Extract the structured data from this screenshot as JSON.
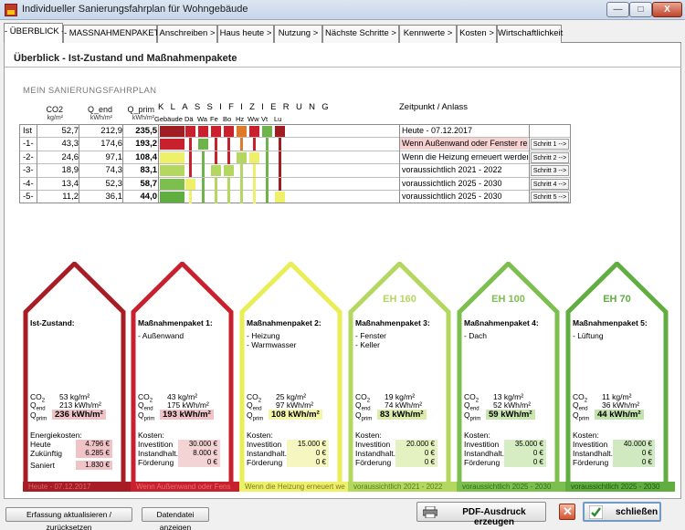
{
  "window": {
    "title": "Individueller Sanierungsfahrplan für Wohngebäude",
    "min": "—",
    "max": "□",
    "close": "X"
  },
  "tabs": [
    "- ÜBERBLICK -",
    "- MASSNAHMENPAKETE -",
    "Anschreiben >",
    "Haus heute >",
    "Nutzung >",
    "Nächste Schritte >",
    "Kennwerte >",
    "Kosten >",
    "Wirtschaftlichkeit"
  ],
  "header": "Überblick - Ist-Zustand und Maßnahmenpakete",
  "section_title": "MEIN SANIERUNGSFAHRPLAN",
  "table": {
    "col_co2": "CO2",
    "col_co2_unit": "kg/m²",
    "col_qend": "Q_end",
    "col_qend_unit": "kWh/m²",
    "col_qprim": "Q_prim",
    "col_qprim_unit": "kWh/m²",
    "klassifizierung": "KLASSIFIZIERUNG",
    "klass_cols": [
      "Gebäude",
      "Dä",
      "Wa",
      "Fe",
      "Bo",
      "Hz",
      "Ww",
      "Vt",
      "Lu"
    ],
    "zeitpunkt": "Zeitpunkt / Anlass",
    "rows": [
      {
        "label": "Ist",
        "co2": "52,7",
        "qend": "212,9",
        "qprim": "235,5",
        "anlass": "Heute - 07.12.2017",
        "schritt": ""
      },
      {
        "label": "-1-",
        "co2": "43,3",
        "qend": "174,6",
        "qprim": "193,2",
        "anlass": "Wenn Außenwand oder Fenster rep",
        "schritt": "Schritt 1 -->"
      },
      {
        "label": "-2-",
        "co2": "24,6",
        "qend": "97,1",
        "qprim": "108,4",
        "anlass": "Wenn die Heizung erneuert werden",
        "schritt": "Schritt 2 -->"
      },
      {
        "label": "-3-",
        "co2": "18,9",
        "qend": "74,3",
        "qprim": "83,1",
        "anlass": "voraussichtlich 2021 - 2022",
        "schritt": "Schritt 3 -->"
      },
      {
        "label": "-4-",
        "co2": "13,4",
        "qend": "52,3",
        "qprim": "58,7",
        "anlass": "voraussichtlich 2025 - 2030",
        "schritt": "Schritt 4 -->"
      },
      {
        "label": "-5-",
        "co2": "11,2",
        "qend": "36,1",
        "qprim": "44,0",
        "anlass": "voraussichtlich 2025 - 2030",
        "schritt": "Schritt 5 -->"
      }
    ]
  },
  "houses": [
    {
      "eh": "",
      "title": "Ist-Zustand:",
      "items": [],
      "co2": "53 kg/m²",
      "qend": "213 kWh/m²",
      "qprim": "236 kWh/m²",
      "cost_title": "Energiekosten:",
      "cost_labels": [
        "Heute",
        "Zukünftig",
        "Saniert"
      ],
      "cost_values": [
        "4.796 €",
        "6.285 €",
        "1.830 €"
      ],
      "strip": "Heute - 07.12.2017"
    },
    {
      "eh": "",
      "title": "Maßnahmenpaket 1:",
      "items": [
        "- Außenwand"
      ],
      "co2": "43 kg/m²",
      "qend": "175 kWh/m²",
      "qprim": "193 kWh/m²",
      "cost_title": "Kosten:",
      "cost_labels": [
        "Investition",
        "Instandhalt.",
        "Förderung"
      ],
      "cost_values": [
        "30.000 €",
        "8.000 €",
        "0 €"
      ],
      "strip": "Wenn Außenwand oder Fens"
    },
    {
      "eh": "",
      "title": "Maßnahmenpaket 2:",
      "items": [
        "- Heizung",
        "- Warmwasser"
      ],
      "co2": "25 kg/m²",
      "qend": "97 kWh/m²",
      "qprim": "108 kWh/m²",
      "cost_title": "Kosten:",
      "cost_labels": [
        "Investition",
        "Instandhalt.",
        "Förderung"
      ],
      "cost_values": [
        "15.000 €",
        "0 €",
        "0 €"
      ],
      "strip": "Wenn die Heizung erneuert we"
    },
    {
      "eh": "EH 160",
      "title": "Maßnahmenpaket 3:",
      "items": [
        "- Fenster",
        "- Keller"
      ],
      "co2": "19 kg/m²",
      "qend": "74 kWh/m²",
      "qprim": "83 kWh/m²",
      "cost_title": "Kosten:",
      "cost_labels": [
        "Investition",
        "Instandhalt.",
        "Förderung"
      ],
      "cost_values": [
        "20.000 €",
        "0 €",
        "0 €"
      ],
      "strip": "voraussichtlich 2021 - 2022"
    },
    {
      "eh": "EH 100",
      "title": "Maßnahmenpaket 4:",
      "items": [
        "- Dach"
      ],
      "co2": "13 kg/m²",
      "qend": "52 kWh/m²",
      "qprim": "59 kWh/m²",
      "cost_title": "Kosten:",
      "cost_labels": [
        "Investition",
        "Instandhalt.",
        "Förderung"
      ],
      "cost_values": [
        "35.000 €",
        "0 €",
        "0 €"
      ],
      "strip": "voraussichtlich 2025 - 2030"
    },
    {
      "eh": "EH 70",
      "title": "Maßnahmenpaket 5:",
      "items": [
        "- Lüftung"
      ],
      "co2": "11 kg/m²",
      "qend": "36 kWh/m²",
      "qprim": "44 kWh/m²",
      "cost_title": "Kosten:",
      "cost_labels": [
        "Investition",
        "Instandhalt.",
        "Förderung"
      ],
      "cost_values": [
        "40.000 €",
        "0 €",
        "0 €"
      ],
      "strip": "voraussichtlich 2025 - 2030"
    }
  ],
  "labels": {
    "co2": "CO",
    "qend": "Q",
    "qend_sub": "end",
    "qprim": "Q",
    "qprim_sub": "prim",
    "co2_sub": "2"
  },
  "buttons": {
    "update": "Erfassung aktualisieren / zurücksetzen",
    "datafile": "Datendatei anzeigen",
    "pdf": "PDF-Ausdruck erzeugen",
    "close": "schließen"
  },
  "colors": {
    "dark_red": "#a71c25",
    "red": "#c8202c",
    "yellow": "#eef06a",
    "light_green": "#b4d760",
    "green": "#7cbf4e",
    "mid_green": "#5fae3f"
  }
}
